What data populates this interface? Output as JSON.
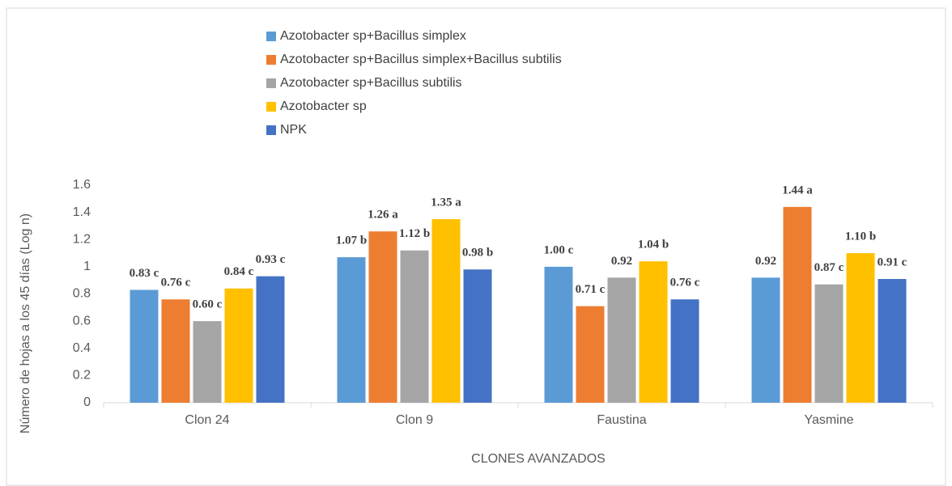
{
  "chart_data": {
    "type": "bar",
    "y_label": "Número de hojas a los 45 días (Log n)",
    "x_label": "CLONES AVANZADOS",
    "categories": [
      "Clon 24",
      "Clon 9",
      "Faustina",
      "Yasmine"
    ],
    "series": [
      {
        "name": "Azotobacter sp+Bacillus simplex",
        "color": "#5b9bd5",
        "values": [
          0.83,
          1.07,
          1.0,
          0.92
        ],
        "value_labels": [
          "0.83 c",
          "1.07 b",
          "1.00 c",
          "0.92"
        ]
      },
      {
        "name": "Azotobacter sp+Bacillus simplex+Bacillus subtilis",
        "color": "#ed7d31",
        "values": [
          0.76,
          1.26,
          0.71,
          1.44
        ],
        "value_labels": [
          "0.76 c",
          "1.26 a",
          "0.71 c",
          "1.44 a"
        ]
      },
      {
        "name": "Azotobacter sp+Bacillus subtilis",
        "color": "#a5a5a5",
        "values": [
          0.6,
          1.12,
          0.92,
          0.87
        ],
        "value_labels": [
          "0.60 c",
          "1.12 b",
          "0.92",
          "0.87 c"
        ]
      },
      {
        "name": "Azotobacter sp",
        "color": "#ffc000",
        "values": [
          0.84,
          1.35,
          1.04,
          1.1
        ],
        "value_labels": [
          "0.84 c",
          "1.35 a",
          "1.04 b",
          "1.10 b"
        ]
      },
      {
        "name": "NPK",
        "color": "#4472c4",
        "values": [
          0.93,
          0.98,
          0.76,
          0.91
        ],
        "value_labels": [
          "0.93 c",
          "0.98 b",
          "0.76 c",
          "0.91 c"
        ]
      }
    ],
    "ylim": [
      0,
      1.6
    ],
    "yticks": [
      0,
      0.2,
      0.4,
      0.6,
      0.8,
      1,
      1.2,
      1.4,
      1.6
    ],
    "legend": "top"
  }
}
